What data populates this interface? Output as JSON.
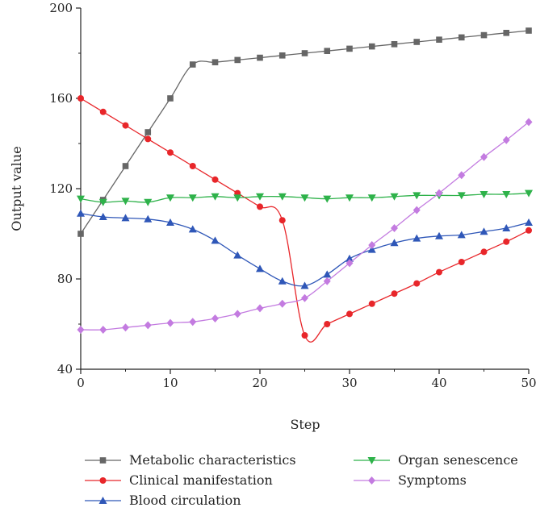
{
  "chart_data": {
    "type": "line",
    "title": "",
    "xlabel": "Step",
    "ylabel": "Output value",
    "xlim": [
      0,
      50
    ],
    "ylim": [
      40,
      200
    ],
    "xticks": [
      0,
      10,
      20,
      30,
      40,
      50
    ],
    "yticks": [
      40,
      80,
      120,
      160,
      200
    ],
    "grid": false,
    "legend_position": "bottom",
    "series": [
      {
        "name": "Metabolic characteristics",
        "color": "#666666",
        "marker": "square",
        "x": [
          0,
          2.5,
          5,
          7.5,
          10,
          12.5,
          15,
          17.5,
          20,
          22.5,
          25,
          27.5,
          30,
          32.5,
          35,
          37.5,
          40,
          42.5,
          45,
          47.5,
          50
        ],
        "y": [
          100,
          115,
          130,
          145,
          160,
          175,
          176,
          177,
          178,
          179,
          180,
          181,
          182,
          183,
          184,
          185,
          186,
          187,
          188,
          189,
          190
        ]
      },
      {
        "name": "Clinical manifestation",
        "color": "#e8262a",
        "marker": "circle",
        "x": [
          0,
          2.5,
          5,
          7.5,
          10,
          12.5,
          15,
          17.5,
          20,
          22.5,
          25,
          27.5,
          30,
          32.5,
          35,
          37.5,
          40,
          42.5,
          45,
          47.5,
          50
        ],
        "y": [
          160,
          154,
          148,
          142,
          136,
          130,
          124,
          118,
          112,
          106,
          55,
          60,
          64.5,
          69,
          73.5,
          78,
          83,
          87.5,
          92,
          96.5,
          101.5
        ]
      },
      {
        "name": "Blood circulation",
        "color": "#2f57b8",
        "marker": "triangle-up",
        "x": [
          0,
          2.5,
          5,
          7.5,
          10,
          12.5,
          15,
          17.5,
          20,
          22.5,
          25,
          27.5,
          30,
          32.5,
          35,
          37.5,
          40,
          42.5,
          45,
          47.5,
          50
        ],
        "y": [
          109,
          107.5,
          107,
          106.5,
          105,
          102,
          97,
          90.5,
          84.5,
          79,
          77,
          82,
          89,
          93,
          96,
          98,
          99,
          99.5,
          101,
          102.5,
          105
        ]
      },
      {
        "name": "Organ senescence",
        "color": "#2eb24a",
        "marker": "triangle-down",
        "x": [
          0,
          2.5,
          5,
          7.5,
          10,
          12.5,
          15,
          17.5,
          20,
          22.5,
          25,
          27.5,
          30,
          32.5,
          35,
          37.5,
          40,
          42.5,
          45,
          47.5,
          50
        ],
        "y": [
          115.5,
          114,
          114.5,
          114,
          116,
          116,
          116.5,
          116,
          116.5,
          116.5,
          116,
          115.5,
          116,
          116,
          116.5,
          117,
          117,
          117,
          117.5,
          117.5,
          118
        ]
      },
      {
        "name": "Symptoms",
        "color": "#c37be0",
        "marker": "diamond",
        "x": [
          0,
          2.5,
          5,
          7.5,
          10,
          12.5,
          15,
          17.5,
          20,
          22.5,
          25,
          27.5,
          30,
          32.5,
          35,
          37.5,
          40,
          42.5,
          45,
          47.5,
          50
        ],
        "y": [
          57.5,
          57.5,
          58.5,
          59.5,
          60.5,
          61,
          62.5,
          64.5,
          67,
          69,
          71.5,
          79,
          87,
          95,
          102.5,
          110.5,
          118,
          126,
          134,
          141.5,
          149.5
        ]
      }
    ]
  }
}
